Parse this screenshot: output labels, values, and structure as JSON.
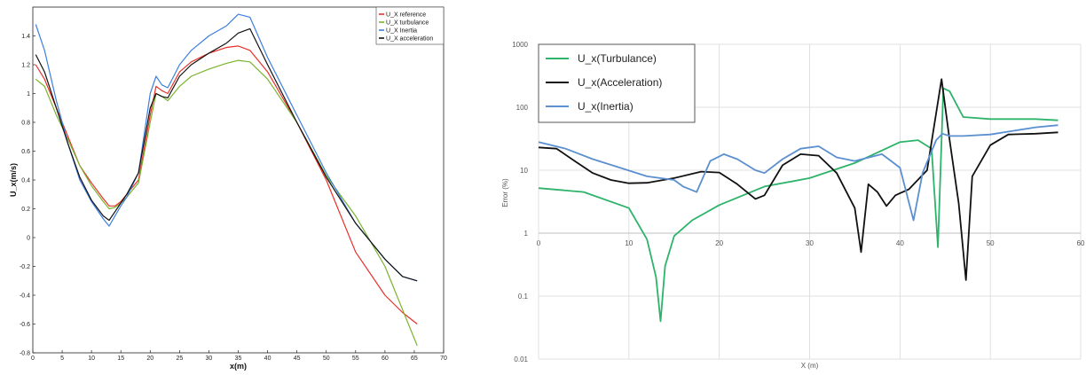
{
  "chart_data": [
    {
      "type": "line",
      "xlabel": "x(m)",
      "ylabel": "U_x(m/s)",
      "xlim": [
        0,
        70
      ],
      "ylim": [
        -0.8,
        1.6
      ],
      "xticks": [
        0,
        5,
        10,
        15,
        20,
        25,
        30,
        35,
        40,
        45,
        50,
        55,
        60,
        65,
        70
      ],
      "yticks": [
        -0.8,
        -0.6,
        -0.4,
        -0.2,
        0,
        0.2,
        0.4,
        0.6,
        0.8,
        1,
        1.2,
        1.4
      ],
      "ytick_labels": [
        "-0.8",
        "-0.6",
        "-0.4",
        "-0.2",
        "0",
        "0.2",
        "0.4",
        "0.6",
        "0.8",
        "1",
        "1.2",
        "1.4"
      ],
      "grid": false,
      "legend_position": "top-right",
      "series": [
        {
          "name": "U_X reference",
          "color": "#e8302a",
          "x": [
            0.5,
            2,
            4,
            6,
            8,
            10,
            12,
            13,
            14,
            15,
            16,
            18,
            20,
            21,
            22,
            23,
            25,
            27,
            30,
            33,
            35,
            37,
            40,
            45,
            50,
            55,
            60,
            63,
            65.5
          ],
          "y": [
            1.2,
            1.1,
            0.9,
            0.7,
            0.5,
            0.38,
            0.27,
            0.22,
            0.22,
            0.25,
            0.3,
            0.4,
            0.85,
            1.05,
            1.02,
            1.0,
            1.15,
            1.22,
            1.28,
            1.32,
            1.33,
            1.3,
            1.15,
            0.8,
            0.4,
            -0.1,
            -0.4,
            -0.52,
            -0.6
          ]
        },
        {
          "name": "U_X turbulance",
          "color": "#7ab32e",
          "x": [
            0.5,
            2,
            4,
            6,
            8,
            10,
            12,
            13,
            14,
            15,
            16,
            18,
            20,
            21,
            22,
            23,
            25,
            27,
            30,
            33,
            35,
            37,
            40,
            45,
            50,
            55,
            60,
            63,
            65.5
          ],
          "y": [
            1.1,
            1.05,
            0.85,
            0.68,
            0.5,
            0.36,
            0.25,
            0.2,
            0.21,
            0.24,
            0.28,
            0.38,
            0.8,
            1.0,
            0.98,
            0.95,
            1.05,
            1.12,
            1.17,
            1.21,
            1.23,
            1.22,
            1.1,
            0.8,
            0.43,
            0.15,
            -0.2,
            -0.5,
            -0.75
          ]
        },
        {
          "name": "U_X Inertia",
          "color": "#3d7fe0",
          "x": [
            0.5,
            2,
            4,
            6,
            8,
            10,
            12,
            13,
            14,
            15,
            16,
            18,
            20,
            21,
            22,
            23,
            25,
            27,
            30,
            33,
            35,
            37,
            40,
            45,
            50,
            55,
            60,
            63,
            65.5
          ],
          "y": [
            1.48,
            1.3,
            0.95,
            0.65,
            0.4,
            0.25,
            0.13,
            0.08,
            0.15,
            0.22,
            0.28,
            0.45,
            1.0,
            1.12,
            1.06,
            1.04,
            1.2,
            1.3,
            1.4,
            1.47,
            1.55,
            1.53,
            1.25,
            0.85,
            0.45,
            0.1,
            -0.15,
            -0.27,
            -0.3
          ]
        },
        {
          "name": "U_X acceleration",
          "color": "#111111",
          "x": [
            0.5,
            2,
            4,
            6,
            8,
            10,
            12,
            13,
            14,
            15,
            16,
            18,
            20,
            21,
            22,
            23,
            25,
            27,
            30,
            33,
            35,
            37,
            40,
            45,
            50,
            55,
            60,
            63,
            65.5
          ],
          "y": [
            1.27,
            1.15,
            0.9,
            0.65,
            0.42,
            0.26,
            0.15,
            0.12,
            0.18,
            0.24,
            0.3,
            0.45,
            0.9,
            1.0,
            0.98,
            0.97,
            1.12,
            1.2,
            1.28,
            1.35,
            1.42,
            1.45,
            1.2,
            0.8,
            0.42,
            0.1,
            -0.15,
            -0.27,
            -0.3
          ]
        }
      ]
    },
    {
      "type": "line",
      "xlabel": "X (m)",
      "ylabel": "Error (%)",
      "xlim": [
        0,
        60
      ],
      "ylim": [
        0.01,
        1000
      ],
      "yscale": "log",
      "xticks": [
        0,
        10,
        20,
        30,
        40,
        50,
        60
      ],
      "yticks": [
        0.01,
        0.1,
        1,
        10,
        100,
        1000
      ],
      "ytick_labels": [
        "0.01",
        "0.1",
        "1",
        "10",
        "100",
        "1000"
      ],
      "grid": true,
      "legend_position": "top-left",
      "series": [
        {
          "name": "U_x(Turbulance)",
          "color": "#2db36a",
          "x": [
            0,
            5,
            10,
            12,
            13,
            13.5,
            14,
            15,
            17,
            20,
            25,
            30,
            35,
            40,
            42,
            43.5,
            44.2,
            44.8,
            45.5,
            47,
            50,
            55,
            57.5
          ],
          "y": [
            5.2,
            4.5,
            2.5,
            0.8,
            0.2,
            0.04,
            0.3,
            0.9,
            1.6,
            2.8,
            5.5,
            7.5,
            13,
            28,
            30,
            22,
            0.6,
            200,
            180,
            70,
            65,
            65,
            62
          ]
        },
        {
          "name": "U_x(Acceleration)",
          "color": "#111111",
          "x": [
            0,
            2,
            4,
            6,
            8,
            10,
            12,
            15,
            18,
            20,
            22,
            24,
            25,
            27,
            29,
            31,
            33,
            35,
            35.7,
            36.5,
            37.5,
            38.5,
            39.5,
            41,
            43,
            44.6,
            45.5,
            46.5,
            47.3,
            48,
            50,
            52,
            55,
            57.5
          ],
          "y": [
            23,
            22,
            14,
            9,
            7,
            6.2,
            6.3,
            7.5,
            9.5,
            9.2,
            6,
            3.5,
            4,
            12,
            18,
            17,
            9,
            2.5,
            0.5,
            6,
            4.5,
            2.7,
            4,
            5,
            10,
            280,
            30,
            3,
            0.18,
            8,
            25,
            37,
            38,
            40
          ]
        },
        {
          "name": "U_x(Inertia)",
          "color": "#5b8fd0",
          "x": [
            0,
            3,
            6,
            9,
            12,
            15,
            16,
            17.5,
            19,
            20.5,
            22,
            24,
            25,
            27,
            29,
            31,
            33,
            35,
            38,
            40,
            41.5,
            42.5,
            44,
            44.7,
            45.5,
            47,
            50,
            55,
            57.5
          ],
          "y": [
            28,
            22,
            15,
            11,
            8,
            7,
            5.5,
            4.5,
            14,
            18,
            15,
            10,
            9,
            15,
            22,
            24,
            16,
            14,
            18,
            11,
            1.6,
            9,
            30,
            38,
            35,
            35,
            37,
            48,
            52
          ]
        }
      ]
    }
  ]
}
